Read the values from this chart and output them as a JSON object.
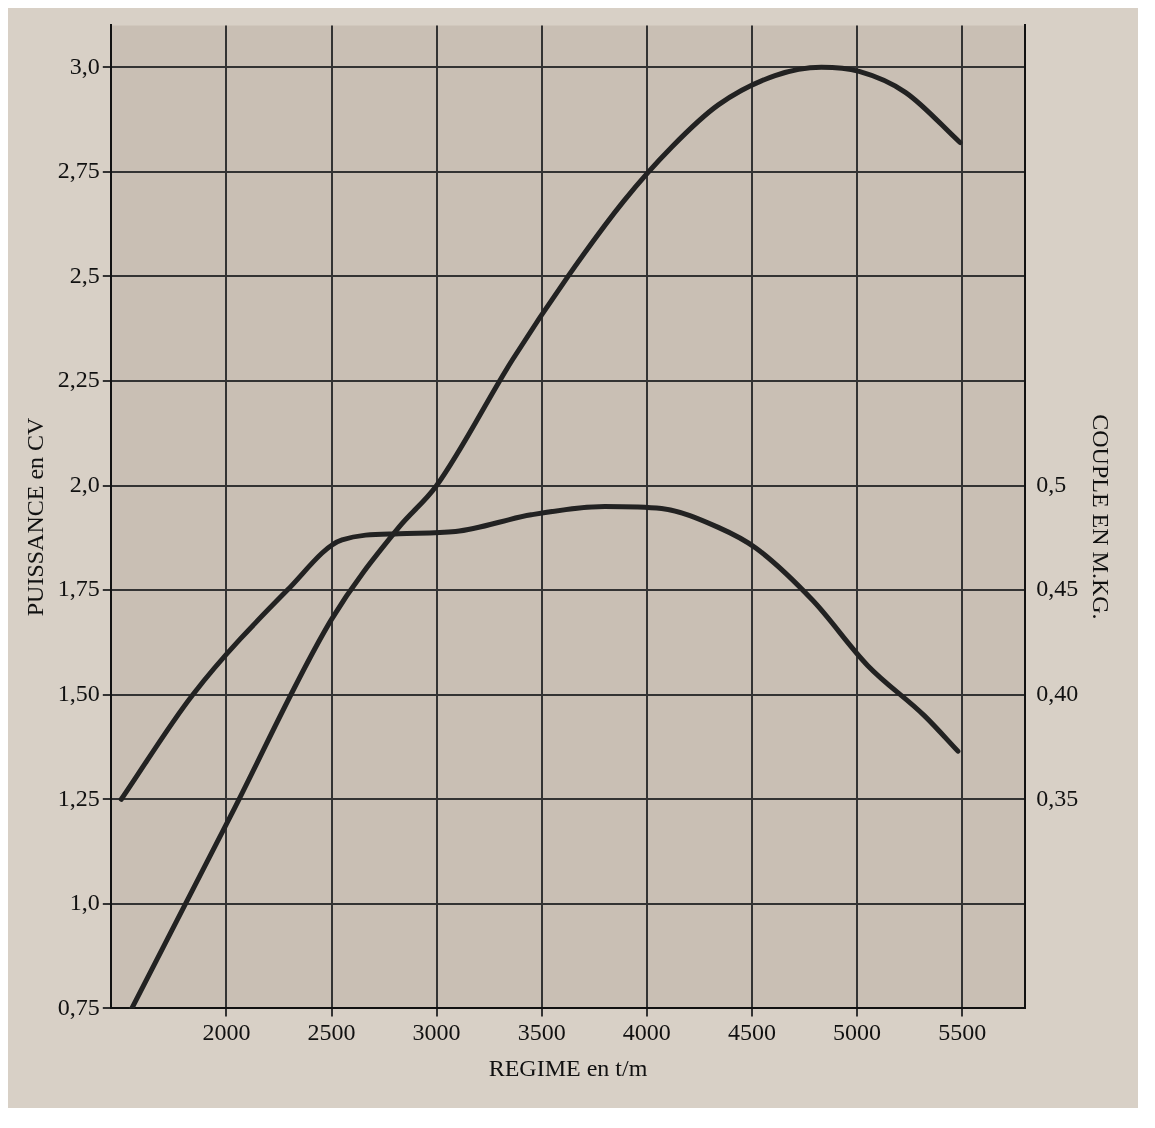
{
  "chart_data": {
    "type": "line",
    "xlabel": "REGIME en t/m",
    "ylabel": "PUISSANCE en CV",
    "y2label": "COUPLE EN M.KG.",
    "xlim": [
      1450,
      5800
    ],
    "xticks": [
      2000,
      2500,
      3000,
      3500,
      4000,
      4500,
      5000,
      5500
    ],
    "ylim": [
      0.75,
      3.1
    ],
    "yticks": [
      {
        "value": 0.75,
        "label": "0,75"
      },
      {
        "value": 1.0,
        "label": "1,0"
      },
      {
        "value": 1.25,
        "label": "1,25"
      },
      {
        "value": 1.5,
        "label": "1,50"
      },
      {
        "value": 1.75,
        "label": "1,75"
      },
      {
        "value": 2.0,
        "label": "2,0"
      },
      {
        "value": 2.25,
        "label": "2,25"
      },
      {
        "value": 2.5,
        "label": "2,5"
      },
      {
        "value": 2.75,
        "label": "2,75"
      },
      {
        "value": 3.0,
        "label": "3,0"
      }
    ],
    "y2lim": [
      0.25,
      0.72
    ],
    "y2ticks": [
      {
        "value": 0.35,
        "label": "0,35"
      },
      {
        "value": 0.4,
        "label": "0,40"
      },
      {
        "value": 0.45,
        "label": "0,45"
      },
      {
        "value": 0.5,
        "label": "0,5"
      }
    ],
    "grid": true,
    "legend": false,
    "marker": "none",
    "line_style": "solid",
    "series": [
      {
        "color": "#222222",
        "x": [
          1550,
          2020,
          2500,
          2820,
          3000,
          3360,
          3625,
          3890,
          4120,
          4340,
          4610,
          4830,
          5010,
          5230,
          5490
        ],
        "values": [
          0.75,
          1.21,
          1.68,
          1.9,
          2.0,
          2.3,
          2.5,
          2.68,
          2.81,
          2.91,
          2.98,
          3.0,
          2.99,
          2.94,
          2.82
        ]
      },
      {
        "color": "#222222",
        "axis": "y2",
        "x": [
          1500,
          1840,
          2290,
          2550,
          2820,
          3090,
          3450,
          3800,
          4070,
          4340,
          4520,
          4790,
          5050,
          5320,
          5480
        ],
        "values": [
          0.35,
          0.4,
          0.45,
          0.474,
          0.477,
          0.478,
          0.486,
          0.49,
          0.489,
          0.48,
          0.47,
          0.445,
          0.414,
          0.39,
          0.373
        ]
      }
    ]
  }
}
